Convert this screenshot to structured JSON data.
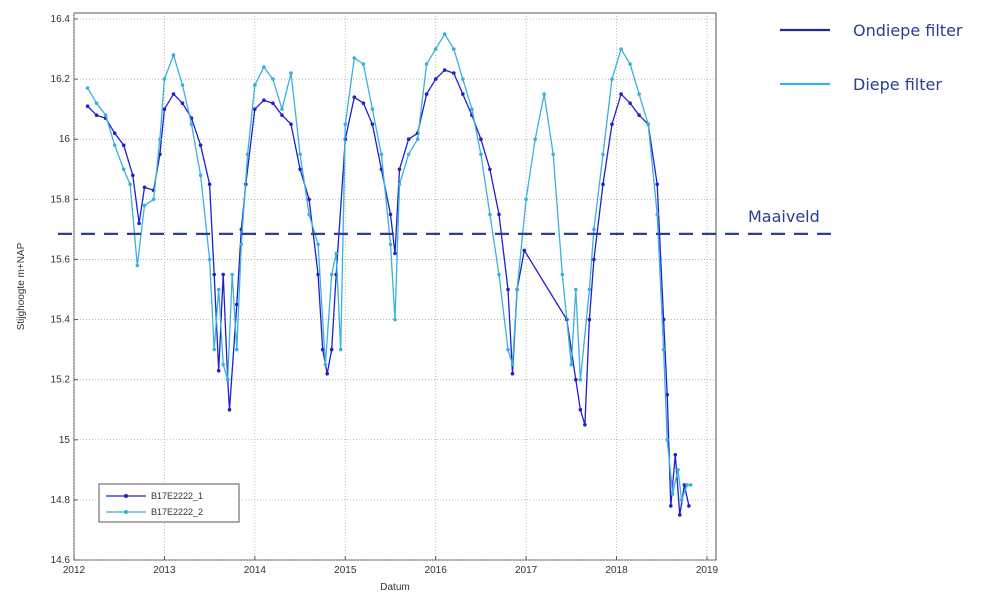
{
  "chart_data": {
    "type": "line",
    "xlabel": "Datum",
    "ylabel": "Stijghoogte m+NAP",
    "xlim": [
      2012.0,
      2019.1
    ],
    "ylim": [
      14.6,
      16.42
    ],
    "x_ticks": [
      2012,
      2013,
      2014,
      2015,
      2016,
      2017,
      2018,
      2019
    ],
    "y_ticks": [
      14.6,
      14.8,
      15,
      15.2,
      15.4,
      15.6,
      15.8,
      16,
      16.2,
      16.4
    ],
    "grid": true,
    "legend_position": "bottom-left",
    "series": [
      {
        "name": "B17E2222_1",
        "color": "#1f1fcf",
        "points": [
          [
            2012.15,
            16.11
          ],
          [
            2012.25,
            16.08
          ],
          [
            2012.35,
            16.07
          ],
          [
            2012.45,
            16.02
          ],
          [
            2012.55,
            15.98
          ],
          [
            2012.65,
            15.88
          ],
          [
            2012.72,
            15.72
          ],
          [
            2012.78,
            15.84
          ],
          [
            2012.88,
            15.83
          ],
          [
            2012.95,
            15.95
          ],
          [
            2013.0,
            16.1
          ],
          [
            2013.1,
            16.15
          ],
          [
            2013.2,
            16.12
          ],
          [
            2013.3,
            16.07
          ],
          [
            2013.4,
            15.98
          ],
          [
            2013.5,
            15.85
          ],
          [
            2013.55,
            15.55
          ],
          [
            2013.6,
            15.23
          ],
          [
            2013.65,
            15.55
          ],
          [
            2013.7,
            15.2
          ],
          [
            2013.72,
            15.1
          ],
          [
            2013.8,
            15.45
          ],
          [
            2013.85,
            15.7
          ],
          [
            2013.9,
            15.85
          ],
          [
            2014.0,
            16.1
          ],
          [
            2014.1,
            16.13
          ],
          [
            2014.2,
            16.12
          ],
          [
            2014.3,
            16.08
          ],
          [
            2014.4,
            16.05
          ],
          [
            2014.5,
            15.9
          ],
          [
            2014.6,
            15.8
          ],
          [
            2014.7,
            15.55
          ],
          [
            2014.75,
            15.3
          ],
          [
            2014.8,
            15.22
          ],
          [
            2014.85,
            15.3
          ],
          [
            2014.9,
            15.55
          ],
          [
            2015.0,
            16.0
          ],
          [
            2015.1,
            16.14
          ],
          [
            2015.2,
            16.12
          ],
          [
            2015.3,
            16.05
          ],
          [
            2015.4,
            15.9
          ],
          [
            2015.5,
            15.75
          ],
          [
            2015.55,
            15.62
          ],
          [
            2015.6,
            15.9
          ],
          [
            2015.7,
            16.0
          ],
          [
            2015.8,
            16.02
          ],
          [
            2015.9,
            16.15
          ],
          [
            2016.0,
            16.2
          ],
          [
            2016.1,
            16.23
          ],
          [
            2016.2,
            16.22
          ],
          [
            2016.3,
            16.15
          ],
          [
            2016.4,
            16.08
          ],
          [
            2016.5,
            16.0
          ],
          [
            2016.6,
            15.9
          ],
          [
            2016.7,
            15.75
          ],
          [
            2016.8,
            15.5
          ],
          [
            2016.85,
            15.22
          ],
          [
            2016.9,
            15.5
          ],
          [
            2016.98,
            15.63
          ],
          [
            2017.45,
            15.4
          ],
          [
            2017.55,
            15.2
          ],
          [
            2017.6,
            15.1
          ],
          [
            2017.65,
            15.05
          ],
          [
            2017.7,
            15.4
          ],
          [
            2017.75,
            15.6
          ],
          [
            2017.85,
            15.85
          ],
          [
            2017.95,
            16.05
          ],
          [
            2018.05,
            16.15
          ],
          [
            2018.15,
            16.12
          ],
          [
            2018.25,
            16.08
          ],
          [
            2018.35,
            16.05
          ],
          [
            2018.45,
            15.85
          ],
          [
            2018.52,
            15.4
          ],
          [
            2018.56,
            15.15
          ],
          [
            2018.6,
            14.78
          ],
          [
            2018.65,
            14.95
          ],
          [
            2018.7,
            14.75
          ],
          [
            2018.75,
            14.85
          ],
          [
            2018.8,
            14.78
          ]
        ]
      },
      {
        "name": "B17E2222_2",
        "color": "#3ab0e0",
        "points": [
          [
            2012.15,
            16.17
          ],
          [
            2012.25,
            16.12
          ],
          [
            2012.35,
            16.08
          ],
          [
            2012.45,
            15.98
          ],
          [
            2012.55,
            15.9
          ],
          [
            2012.62,
            15.85
          ],
          [
            2012.7,
            15.58
          ],
          [
            2012.78,
            15.78
          ],
          [
            2012.88,
            15.8
          ],
          [
            2012.95,
            16.0
          ],
          [
            2013.0,
            16.2
          ],
          [
            2013.1,
            16.28
          ],
          [
            2013.2,
            16.18
          ],
          [
            2013.3,
            16.05
          ],
          [
            2013.4,
            15.88
          ],
          [
            2013.5,
            15.6
          ],
          [
            2013.55,
            15.3
          ],
          [
            2013.6,
            15.5
          ],
          [
            2013.65,
            15.25
          ],
          [
            2013.7,
            15.2
          ],
          [
            2013.75,
            15.55
          ],
          [
            2013.8,
            15.3
          ],
          [
            2013.85,
            15.65
          ],
          [
            2013.92,
            15.95
          ],
          [
            2014.0,
            16.18
          ],
          [
            2014.1,
            16.24
          ],
          [
            2014.2,
            16.2
          ],
          [
            2014.3,
            16.1
          ],
          [
            2014.4,
            16.22
          ],
          [
            2014.5,
            15.95
          ],
          [
            2014.6,
            15.75
          ],
          [
            2014.7,
            15.65
          ],
          [
            2014.78,
            15.25
          ],
          [
            2014.85,
            15.55
          ],
          [
            2014.9,
            15.62
          ],
          [
            2014.95,
            15.3
          ],
          [
            2015.0,
            16.05
          ],
          [
            2015.1,
            16.27
          ],
          [
            2015.2,
            16.25
          ],
          [
            2015.3,
            16.1
          ],
          [
            2015.4,
            15.95
          ],
          [
            2015.5,
            15.65
          ],
          [
            2015.55,
            15.4
          ],
          [
            2015.6,
            15.85
          ],
          [
            2015.7,
            15.95
          ],
          [
            2015.8,
            16.0
          ],
          [
            2015.9,
            16.25
          ],
          [
            2016.0,
            16.3
          ],
          [
            2016.1,
            16.35
          ],
          [
            2016.2,
            16.3
          ],
          [
            2016.3,
            16.2
          ],
          [
            2016.4,
            16.1
          ],
          [
            2016.5,
            15.95
          ],
          [
            2016.6,
            15.75
          ],
          [
            2016.7,
            15.55
          ],
          [
            2016.8,
            15.3
          ],
          [
            2016.85,
            15.25
          ],
          [
            2016.9,
            15.5
          ],
          [
            2017.0,
            15.8
          ],
          [
            2017.1,
            16.0
          ],
          [
            2017.2,
            16.15
          ],
          [
            2017.3,
            15.95
          ],
          [
            2017.4,
            15.55
          ],
          [
            2017.5,
            15.25
          ],
          [
            2017.55,
            15.5
          ],
          [
            2017.6,
            15.2
          ],
          [
            2017.7,
            15.5
          ],
          [
            2017.75,
            15.7
          ],
          [
            2017.85,
            15.95
          ],
          [
            2017.95,
            16.2
          ],
          [
            2018.05,
            16.3
          ],
          [
            2018.15,
            16.25
          ],
          [
            2018.25,
            16.15
          ],
          [
            2018.35,
            16.05
          ],
          [
            2018.45,
            15.75
          ],
          [
            2018.52,
            15.3
          ],
          [
            2018.56,
            15.0
          ],
          [
            2018.62,
            14.82
          ],
          [
            2018.68,
            14.9
          ],
          [
            2018.72,
            14.8
          ],
          [
            2018.78,
            14.85
          ],
          [
            2018.82,
            14.85
          ]
        ]
      }
    ],
    "reference_line": {
      "label": "Maaiveld",
      "y": 15.685,
      "color": "#2a3f8f"
    },
    "external_legend": [
      {
        "label": "Ondiepe filter",
        "color": "#1f2d8f"
      },
      {
        "label": "Diepe filter",
        "color": "#3ab0e0"
      }
    ]
  }
}
